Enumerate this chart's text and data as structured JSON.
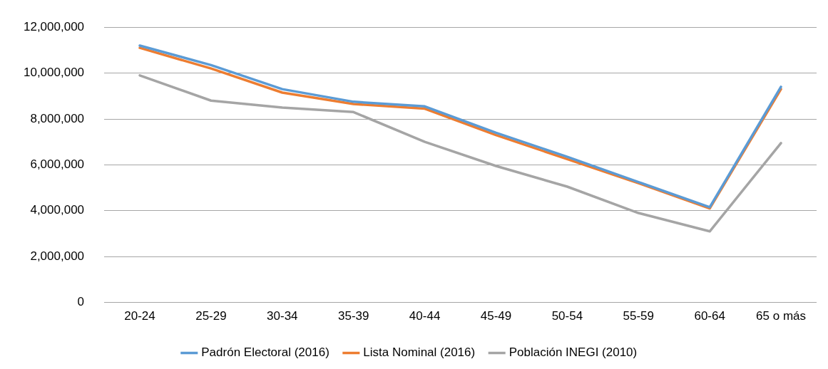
{
  "chart_data": {
    "type": "line",
    "categories": [
      "20-24",
      "25-29",
      "30-34",
      "35-39",
      "40-44",
      "45-49",
      "50-54",
      "55-59",
      "60-64",
      "65 o más"
    ],
    "series": [
      {
        "name": "Padrón Electoral (2016)",
        "color": "#5b9bd5",
        "values": [
          11200000,
          10350000,
          9300000,
          8750000,
          8550000,
          7400000,
          6350000,
          5250000,
          4150000,
          9400000
        ]
      },
      {
        "name": "Lista Nominal (2016)",
        "color": "#ed7d31",
        "values": [
          11100000,
          10200000,
          9150000,
          8650000,
          8450000,
          7300000,
          6250000,
          5200000,
          4100000,
          9300000
        ]
      },
      {
        "name": "Población INEGI (2010)",
        "color": "#a5a5a5",
        "values": [
          9900000,
          8800000,
          8500000,
          8300000,
          7000000,
          5950000,
          5050000,
          3900000,
          3100000,
          6950000
        ]
      }
    ],
    "ylim": [
      0,
      12000000
    ],
    "yticks": [
      0,
      {
        "value": 2000000,
        "label": "2,000,000"
      },
      {
        "value": 4000000,
        "label": "4,000,000"
      },
      {
        "value": 6000000,
        "label": "6,000,000"
      },
      {
        "value": 8000000,
        "label": "8,000,000"
      },
      {
        "value": 10000000,
        "label": "10,000,000"
      },
      {
        "value": 12000000,
        "label": "12,000,000"
      }
    ],
    "grid": "y",
    "legend": "bottom",
    "marker": "none",
    "line_style": "solid"
  }
}
